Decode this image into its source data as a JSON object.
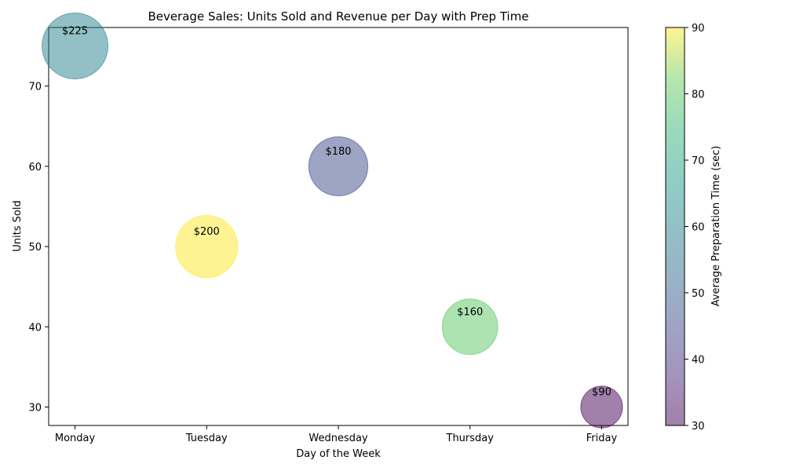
{
  "chart_data": {
    "type": "scatter",
    "title": "Beverage Sales: Units Sold and Revenue per Day with Prep Time",
    "xlabel": "Day of the Week",
    "ylabel": "Units Sold",
    "categories": [
      "Monday",
      "Tuesday",
      "Wednesday",
      "Thursday",
      "Friday"
    ],
    "units_sold": [
      75,
      50,
      60,
      40,
      30
    ],
    "revenue": [
      225,
      200,
      180,
      160,
      90
    ],
    "revenue_labels": [
      "$225",
      "$200",
      "$180",
      "$160",
      "$90"
    ],
    "prep_time_sec": [
      60,
      90,
      45,
      80,
      30
    ],
    "ylim": [
      27.7,
      77.3
    ],
    "yticks": [
      30,
      40,
      50,
      60,
      70
    ],
    "colorbar": {
      "label": "Average Preparation Time (sec)",
      "range": [
        30,
        90
      ],
      "ticks": [
        30,
        40,
        50,
        60,
        70,
        80,
        90
      ],
      "colormap": "viridis",
      "alpha": 0.5
    },
    "grid": false,
    "legend": "none"
  }
}
